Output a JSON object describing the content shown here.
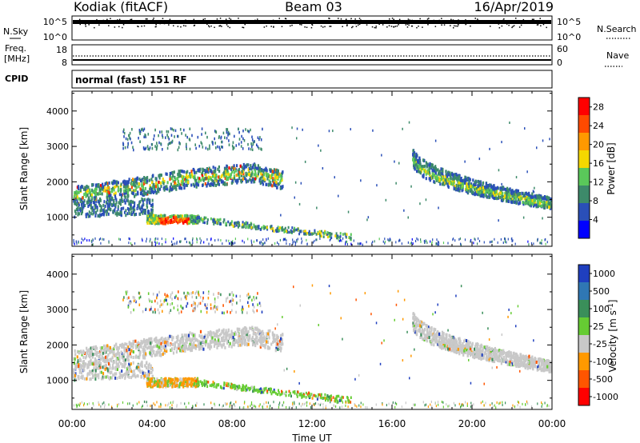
{
  "header": {
    "station": "Kodiak (fitACF)",
    "beam": "Beam 03",
    "date": "16/Apr/2019"
  },
  "side_labels": {
    "nsky": "N.Sky",
    "nsearch": "N.Search",
    "freq_line1": "Freq.",
    "freq_line2": "[MHz]",
    "nave": "Nave",
    "cpid": "CPID"
  },
  "strip_ticks": {
    "nsky_top": "10^5",
    "nsky_bottom": "10^0",
    "nsearch_top": "10^5",
    "nsearch_bottom": "10^0",
    "freq_top": "18",
    "freq_bottom": "8",
    "nave_top": "60",
    "nave_bottom": "0"
  },
  "cpid_text": "normal (fast) 151 RF",
  "chart_data": [
    {
      "type": "heatmap",
      "name": "power",
      "ylabel": "Slant Range [km]",
      "ylim": [
        180,
        4560
      ],
      "yticks": [
        "1000",
        "2000",
        "3000",
        "4000"
      ],
      "x": [
        "00:00",
        "04:00",
        "08:00",
        "12:00",
        "16:00",
        "20:00",
        "00:00"
      ],
      "xlim_hours": [
        0,
        24
      ],
      "colorbar": {
        "label": "Power [dB]",
        "ticks": [
          "4",
          "8",
          "12",
          "16",
          "20",
          "24",
          "28"
        ],
        "range": [
          0,
          30
        ],
        "colors": [
          "#0000ff",
          "#2a4fb8",
          "#3d8a6a",
          "#5ac85a",
          "#f5d800",
          "#ff9900",
          "#ff4a00",
          "#ff0000"
        ]
      },
      "echo_regions": [
        {
          "feature": "ionospheric band (first hop)",
          "hours": [
            0,
            10.5
          ],
          "range_km": [
            1450,
            2300
          ],
          "power_db": [
            8,
            22
          ]
        },
        {
          "feature": "upper scatter",
          "hours": [
            2.5,
            9.5
          ],
          "range_km": [
            2900,
            3500
          ],
          "power_db": [
            6,
            12
          ]
        },
        {
          "feature": "near-range enhancement",
          "hours": [
            3.7,
            6.3
          ],
          "range_km": [
            800,
            1050
          ],
          "power_db": [
            20,
            30
          ]
        },
        {
          "feature": "low-range band",
          "hours": [
            0,
            14
          ],
          "range_km": [
            450,
            1100
          ],
          "power_db": [
            4,
            14
          ]
        },
        {
          "feature": "evening band",
          "hours": [
            17,
            24
          ],
          "range_km": [
            1250,
            3300
          ],
          "power_db": [
            6,
            20
          ]
        }
      ]
    },
    {
      "type": "heatmap",
      "name": "velocity",
      "ylabel": "Slant Range [km]",
      "xlabel": "Time UT",
      "ylim": [
        180,
        4560
      ],
      "yticks": [
        "1000",
        "2000",
        "3000",
        "4000"
      ],
      "x": [
        "00:00",
        "04:00",
        "08:00",
        "12:00",
        "16:00",
        "20:00",
        "00:00"
      ],
      "xlim_hours": [
        0,
        24
      ],
      "colorbar": {
        "label": "Velocity [m s^-1]",
        "ticks": [
          "1000",
          "500",
          "100",
          "25",
          "-25",
          "-100",
          "-500",
          "-1000"
        ],
        "colors": [
          "#1f3fbf",
          "#2f77b4",
          "#3a8f5a",
          "#66cc33",
          "#c8c8c8",
          "#ff9900",
          "#ff5500",
          "#ff0000"
        ]
      },
      "echo_regions": [
        {
          "feature": "ionospheric band",
          "hours": [
            0,
            10.5
          ],
          "range_km": [
            1450,
            2300
          ],
          "velocity_ms": [
            -25,
            25
          ]
        },
        {
          "feature": "near-range enhancement",
          "hours": [
            3.7,
            6.3
          ],
          "range_km": [
            800,
            1050
          ],
          "velocity_ms": [
            -500,
            100
          ]
        },
        {
          "feature": "evening band",
          "hours": [
            17,
            24
          ],
          "range_km": [
            1250,
            3300
          ],
          "velocity_ms": [
            -25,
            25
          ]
        }
      ]
    }
  ]
}
